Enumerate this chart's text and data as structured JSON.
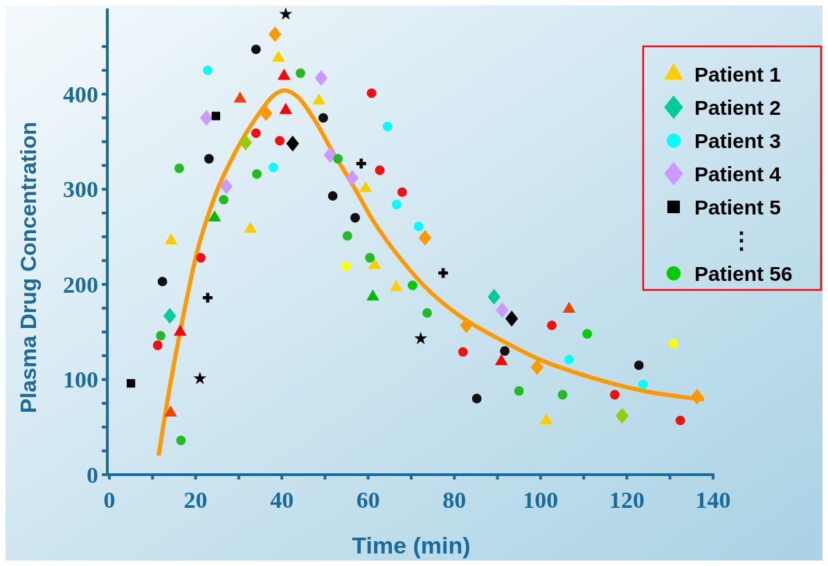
{
  "chart_data": {
    "type": "scatter",
    "xlabel": "Time (min)",
    "ylabel": "Plasma Drug Concentration",
    "xlim": [
      0,
      140
    ],
    "ylim": [
      0,
      490
    ],
    "xticks": [
      0,
      {
        "value": 10,
        "label": null
      },
      20,
      {
        "value": 30,
        "label": null
      },
      40,
      {
        "value": 50,
        "label": null
      },
      60,
      {
        "value": 70,
        "label": null
      },
      80,
      {
        "value": 90,
        "label": null
      },
      100,
      {
        "value": 110,
        "label": null
      },
      120,
      {
        "value": 130,
        "label": null
      },
      140
    ],
    "yticks": [
      0,
      {
        "value": 25,
        "label": null
      },
      {
        "value": 50,
        "label": null
      },
      {
        "value": 75,
        "label": null
      },
      100,
      {
        "value": 125,
        "label": null
      },
      {
        "value": 150,
        "label": null
      },
      {
        "value": 175,
        "label": null
      },
      200,
      {
        "value": 225,
        "label": null
      },
      {
        "value": 250,
        "label": null
      },
      {
        "value": 275,
        "label": null
      },
      300,
      {
        "value": 325,
        "label": null
      },
      {
        "value": 350,
        "label": null
      },
      {
        "value": 375,
        "label": null
      },
      400,
      {
        "value": 425,
        "label": null
      },
      {
        "value": 450,
        "label": null
      }
    ],
    "grid": false,
    "legend": "top right",
    "annotations": [
      "⋮"
    ],
    "series": [
      {
        "name": "Patient 1",
        "color": "#ffcc00",
        "marker": "triangle",
        "x": [
          14.3,
          32.7,
          39.2,
          48.6,
          59.4,
          61.5,
          66.5,
          101.3
        ],
        "values": [
          246,
          258,
          438,
          393,
          301,
          220,
          197,
          57
        ]
      },
      {
        "name": "Patient 2",
        "color": "#00cc99",
        "marker": "diamond",
        "x": [
          14.0,
          89.2
        ],
        "values": [
          167,
          187
        ]
      },
      {
        "name": "Patient 3",
        "color": "#00ffff",
        "marker": "circle",
        "x": [
          22.8,
          38.0,
          64.5,
          66.6,
          71.7,
          106.6,
          123.8
        ],
        "values": [
          425,
          323,
          366,
          284,
          261,
          121,
          95
        ]
      },
      {
        "name": "Patient 4",
        "color": "#cc99ff",
        "marker": "diamond",
        "x": [
          22.5,
          27.1,
          49.1,
          51.2,
          56.3,
          91.1
        ],
        "values": [
          375,
          303,
          417,
          336,
          312,
          173
        ]
      },
      {
        "name": "Patient 5",
        "color": "#000000",
        "marker": "square",
        "x": [
          5.0,
          24.7
        ],
        "values": [
          96,
          377
        ]
      },
      {
        "name": "Patient 56",
        "color": "#00cc00",
        "marker": "circle",
        "x": [
          70.3,
          110.8
        ],
        "values": [
          199,
          148
        ]
      },
      {
        "color": "#ff0000",
        "marker": "triangle",
        "x": [
          16.4,
          40.5,
          40.9,
          90.9
        ],
        "values": [
          150,
          419,
          383,
          119
        ]
      },
      {
        "color": "#ee1111",
        "marker": "circle",
        "x": [
          11.2,
          21.2,
          34.0,
          39.5,
          60.8,
          62.7,
          67.9,
          82.0,
          102.6,
          117.2,
          132.4
        ],
        "values": [
          136,
          228,
          359,
          351,
          401,
          320,
          297,
          129,
          157,
          84,
          57
        ]
      },
      {
        "color": "#111111",
        "marker": "circle",
        "x": [
          12.3,
          23.1,
          34.0,
          49.6,
          51.8,
          57.0,
          85.2,
          91.7,
          122.8
        ],
        "values": [
          203,
          332,
          447,
          375,
          293,
          270,
          80,
          130,
          115
        ]
      },
      {
        "color": "#22bb22",
        "marker": "circle",
        "x": [
          11.9,
          16.2,
          16.6,
          26.5,
          34.2,
          44.3,
          53.0,
          55.2,
          60.4,
          73.7,
          95.0,
          105.1
        ],
        "values": [
          146,
          322,
          36,
          289,
          316,
          422,
          332,
          251,
          228,
          170,
          88,
          84
        ]
      },
      {
        "color": "#000000",
        "marker": "cross",
        "x": [
          22.8,
          58.4,
          77.4
        ],
        "values": [
          186,
          327,
          212
        ]
      },
      {
        "color": "#000000",
        "marker": "star",
        "x": [
          40.9,
          21.0,
          72.2
        ],
        "values": [
          484,
          101,
          143
        ]
      },
      {
        "color": "#ff9900",
        "marker": "diamond",
        "x": [
          38.4,
          36.3,
          73.2,
          82.8,
          99.2,
          136.3
        ],
        "values": [
          463,
          380,
          249,
          157,
          113,
          82
        ]
      },
      {
        "color": "#00bb00",
        "marker": "triangle",
        "x": [
          24.4,
          61.1
        ],
        "values": [
          270,
          187
        ]
      },
      {
        "color": "#99cc00",
        "marker": "diamond",
        "x": [
          31.6,
          118.9
        ],
        "values": [
          349,
          62
        ]
      },
      {
        "color": "#ee4400",
        "marker": "triangle",
        "x": [
          14.2,
          30.3,
          106.6
        ],
        "values": [
          65,
          395,
          174
        ]
      },
      {
        "color": "#ffff00",
        "marker": "circle",
        "x": [
          54.9,
          130.8
        ],
        "values": [
          219,
          138
        ]
      },
      {
        "color": "#000000",
        "marker": "diamond",
        "x": [
          42.5,
          93.3
        ],
        "values": [
          348,
          164
        ]
      },
      {
        "type": "line",
        "color": "#ff9900",
        "marker": "none",
        "line_style": "solid",
        "x": [
          11.4,
          14.0,
          16.7,
          20.1,
          24.4,
          29.2,
          34.0,
          38.8,
          40.5,
          43.7,
          47.7,
          51.7,
          56.5,
          61.3,
          67.7,
          74.2,
          82.2,
          90.2,
          99.8,
          111.1,
          123.9,
          137.9
        ],
        "values": [
          20,
          92,
          157,
          230,
          292,
          339,
          375,
          401,
          404,
          397,
          372,
          340,
          304,
          266,
          226,
          193,
          164,
          143,
          121,
          103,
          88,
          79
        ]
      }
    ]
  }
}
